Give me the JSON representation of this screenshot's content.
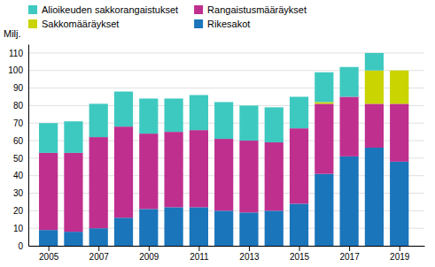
{
  "chart_data": {
    "type": "bar",
    "stacked": true,
    "ylabel": "Milj.",
    "x": [
      2005,
      2006,
      2007,
      2008,
      2009,
      2010,
      2011,
      2012,
      2013,
      2014,
      2015,
      2016,
      2017,
      2018,
      2019
    ],
    "xlim": [
      2004.2,
      2020.0
    ],
    "xticks": [
      2005,
      2007,
      2009,
      2011,
      2013,
      2015,
      2017,
      2019
    ],
    "ylim": [
      0,
      115
    ],
    "yticks": [
      0,
      10,
      20,
      30,
      40,
      50,
      60,
      70,
      80,
      90,
      100,
      110
    ],
    "grid": true,
    "legend": "upper left",
    "series": [
      {
        "name": "Rikesakot",
        "color": "#1a75bb",
        "values": [
          9,
          8,
          10,
          16,
          21,
          22,
          22,
          20,
          19,
          20,
          24,
          41,
          51,
          56,
          48
        ]
      },
      {
        "name": "Rangaistusmääräykset",
        "color": "#bf2f8e",
        "values": [
          44,
          45,
          52,
          52,
          43,
          43,
          44,
          41,
          41,
          39,
          43,
          40,
          34,
          25,
          33
        ]
      },
      {
        "name": "Sakkomääräykset",
        "color": "#cad400",
        "values": [
          0,
          0,
          0,
          0,
          0,
          0,
          0,
          0,
          0,
          0,
          0,
          1,
          0,
          19,
          19
        ]
      },
      {
        "name": "Alioikeuden sakkorangaistukset",
        "color": "#3ec9c0",
        "values": [
          17,
          18,
          19,
          20,
          20,
          19,
          20,
          21,
          20,
          20,
          18,
          17,
          17,
          10,
          0
        ]
      }
    ]
  }
}
